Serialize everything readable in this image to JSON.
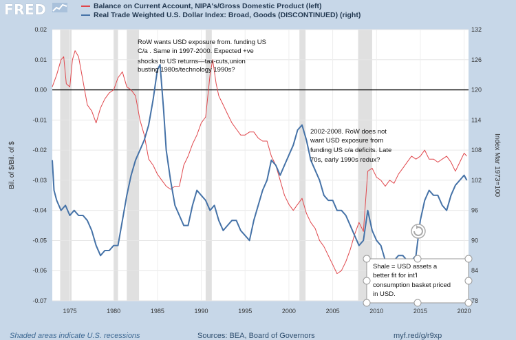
{
  "logo": {
    "text": "FRED"
  },
  "legend": [
    {
      "label": "Balance on Current Account, NIPA's/Gross Domestic Product (left)",
      "color": "#e0474c"
    },
    {
      "label": "Real Trade Weighted U.S. Dollar Index: Broad, Goods (DISCONTINUED) (right)",
      "color": "#4572a7"
    }
  ],
  "footer": {
    "left": "Shaded areas indicate U.S. recessions",
    "middle": "Sources: BEA, Board of Governors",
    "right": "myf.red/g/r9xp"
  },
  "chart_data": {
    "type": "line",
    "ylabel_left": "Bil. of $/Bil. of $",
    "ylabel_right": "Index Mar 1973=100",
    "ylim_left": [
      -0.07,
      0.02
    ],
    "ylim_right": [
      78,
      132
    ],
    "xlim": [
      1973,
      2020.5
    ],
    "x_ticks": [
      "1975",
      "1980",
      "1985",
      "1990",
      "1995",
      "2000",
      "2005",
      "2010",
      "2015",
      "2020"
    ],
    "y_ticks_left": [
      "0.02",
      "0.01",
      "0.00",
      "-0.01",
      "-0.02",
      "-0.03",
      "-0.04",
      "-0.05",
      "-0.06",
      "-0.07"
    ],
    "y_ticks_right": [
      "132",
      "126",
      "120",
      "114",
      "108",
      "102",
      "96",
      "90",
      "84",
      "78"
    ],
    "grid": true,
    "recessions": [
      [
        1973.9,
        1975.2
      ],
      [
        1980.0,
        1980.5
      ],
      [
        1981.5,
        1982.9
      ],
      [
        1990.5,
        1991.2
      ],
      [
        2001.2,
        2001.9
      ],
      [
        2007.9,
        2009.5
      ]
    ],
    "series": [
      {
        "name": "Balance on Current Account, NIPA's/Gross Domestic Product (left)",
        "axis": "left",
        "x": [
          1973.0,
          1973.5,
          1974.0,
          1974.3,
          1974.6,
          1975.0,
          1975.3,
          1975.6,
          1976.0,
          1976.5,
          1977.0,
          1977.5,
          1978.0,
          1978.5,
          1979.0,
          1979.5,
          1980.0,
          1980.5,
          1981.0,
          1981.5,
          1982.0,
          1982.5,
          1983.0,
          1983.5,
          1984.0,
          1984.5,
          1985.0,
          1985.5,
          1986.0,
          1986.5,
          1987.0,
          1987.5,
          1988.0,
          1988.5,
          1989.0,
          1989.5,
          1990.0,
          1990.5,
          1991.0,
          1991.3,
          1991.7,
          1992.0,
          1992.5,
          1993.0,
          1993.5,
          1994.0,
          1994.5,
          1995.0,
          1995.5,
          1996.0,
          1996.5,
          1997.0,
          1997.5,
          1998.0,
          1998.5,
          1999.0,
          1999.5,
          2000.0,
          2000.5,
          2001.0,
          2001.5,
          2002.0,
          2002.5,
          2003.0,
          2003.5,
          2004.0,
          2004.5,
          2005.0,
          2005.5,
          2006.0,
          2006.5,
          2007.0,
          2007.5,
          2008.0,
          2008.5,
          2009.0,
          2009.5,
          2010.0,
          2010.5,
          2011.0,
          2011.5,
          2012.0,
          2012.5,
          2013.0,
          2013.5,
          2014.0,
          2014.5,
          2015.0,
          2015.5,
          2016.0,
          2016.5,
          2017.0,
          2017.5,
          2018.0,
          2018.5,
          2019.0,
          2019.5,
          2020.0,
          2020.3
        ],
        "values": [
          0.001,
          0.005,
          0.01,
          0.011,
          0.002,
          0.001,
          0.01,
          0.013,
          0.011,
          0.003,
          -0.005,
          -0.007,
          -0.011,
          -0.006,
          -0.003,
          -0.001,
          0.0,
          0.004,
          0.006,
          0.001,
          0.0,
          -0.002,
          -0.01,
          -0.015,
          -0.023,
          -0.025,
          -0.028,
          -0.03,
          -0.032,
          -0.033,
          -0.032,
          -0.032,
          -0.025,
          -0.022,
          -0.018,
          -0.015,
          -0.011,
          -0.009,
          0.005,
          0.01,
          0.002,
          -0.002,
          -0.005,
          -0.008,
          -0.011,
          -0.013,
          -0.015,
          -0.015,
          -0.014,
          -0.014,
          -0.016,
          -0.017,
          -0.017,
          -0.022,
          -0.025,
          -0.03,
          -0.035,
          -0.038,
          -0.04,
          -0.038,
          -0.036,
          -0.041,
          -0.044,
          -0.046,
          -0.05,
          -0.052,
          -0.055,
          -0.058,
          -0.061,
          -0.06,
          -0.057,
          -0.053,
          -0.048,
          -0.044,
          -0.047,
          -0.027,
          -0.026,
          -0.029,
          -0.03,
          -0.032,
          -0.03,
          -0.031,
          -0.028,
          -0.026,
          -0.024,
          -0.022,
          -0.023,
          -0.022,
          -0.02,
          -0.023,
          -0.023,
          -0.024,
          -0.023,
          -0.022,
          -0.024,
          -0.027,
          -0.024,
          -0.021,
          -0.022
        ],
        "color": "#e0474c"
      },
      {
        "name": "Real Trade Weighted U.S. Dollar Index: Broad, Goods (DISCONTINUED) (right)",
        "axis": "right",
        "x": [
          1973.0,
          1973.2,
          1973.5,
          1974.0,
          1974.5,
          1975.0,
          1975.5,
          1976.0,
          1976.5,
          1977.0,
          1977.5,
          1978.0,
          1978.5,
          1979.0,
          1979.5,
          1980.0,
          1980.5,
          1981.0,
          1981.5,
          1982.0,
          1982.5,
          1983.0,
          1983.5,
          1984.0,
          1984.5,
          1985.0,
          1985.3,
          1985.7,
          1986.0,
          1986.5,
          1987.0,
          1987.5,
          1988.0,
          1988.5,
          1989.0,
          1989.5,
          1990.0,
          1990.5,
          1991.0,
          1991.5,
          1992.0,
          1992.5,
          1993.0,
          1993.5,
          1994.0,
          1994.5,
          1995.0,
          1995.5,
          1996.0,
          1996.5,
          1997.0,
          1997.5,
          1998.0,
          1998.5,
          1999.0,
          1999.5,
          2000.0,
          2000.5,
          2001.0,
          2001.5,
          2002.0,
          2002.5,
          2003.0,
          2003.5,
          2004.0,
          2004.5,
          2005.0,
          2005.5,
          2006.0,
          2006.5,
          2007.0,
          2007.5,
          2008.0,
          2008.5,
          2009.0,
          2009.5,
          2010.0,
          2010.5,
          2011.0,
          2011.5,
          2012.0,
          2012.5,
          2013.0,
          2013.5,
          2014.0,
          2014.5,
          2015.0,
          2015.5,
          2016.0,
          2016.5,
          2017.0,
          2017.5,
          2018.0,
          2018.5,
          2019.0,
          2019.5,
          2020.0,
          2020.3
        ],
        "values": [
          106,
          100,
          98,
          96,
          97,
          95,
          96,
          95,
          95,
          94,
          92,
          89,
          87,
          88,
          88,
          89,
          89,
          94,
          99,
          103,
          106,
          108,
          110,
          113,
          118,
          124,
          125,
          116,
          108,
          102,
          97,
          95,
          93,
          93,
          97,
          100,
          99,
          98,
          96,
          97,
          94,
          92,
          93,
          94,
          94,
          92,
          91,
          90,
          94,
          97,
          100,
          102,
          106,
          105,
          103,
          105,
          107,
          109,
          112,
          113,
          110,
          106,
          104,
          102,
          99,
          98,
          98,
          96,
          96,
          95,
          93,
          91,
          89,
          90,
          96,
          92,
          90,
          89,
          86,
          85,
          86,
          87,
          87,
          86,
          86,
          87,
          94,
          98,
          100,
          99,
          99,
          97,
          96,
          99,
          101,
          102,
          103,
          102
        ]
      }
    ],
    "annotations": [
      {
        "lines": [
          "RoW wants USD exposure from. funding US",
          "C/a . Same in 1997-2000.  Expected +ve",
          "shocks to US returns—tax-cuts,union",
          "busting 1980s/technology 1990s?"
        ]
      },
      {
        "lines": [
          "2002-2008. RoW does not",
          "want USD exposure from",
          "funding US c/a deficits. Late",
          "70s, early 1990s redux?"
        ]
      },
      {
        "lines": [
          "Shale = USD assets  a",
          "better fit for int'l",
          "consumption basket priced",
          "in USD."
        ]
      }
    ]
  }
}
